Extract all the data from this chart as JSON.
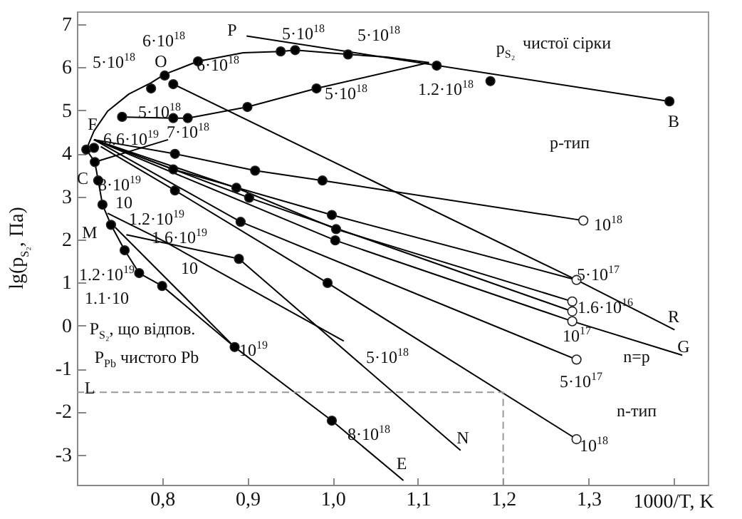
{
  "chart_data": {
    "type": "line",
    "xlabel": "1000/T, K",
    "ylabel": "lg(p$_{S₂}$, Па)",
    "xlim": [
      0.7,
      1.44
    ],
    "ylim": [
      -3.7,
      7.3
    ],
    "xticks": [
      {
        "value": 0.8,
        "label": "0,8"
      },
      {
        "value": 0.9,
        "label": "0,9"
      },
      {
        "value": 1.0,
        "label": "1,0"
      },
      {
        "value": 1.1,
        "label": "1,1"
      },
      {
        "value": 1.2,
        "label": "1,2"
      },
      {
        "value": 1.3,
        "label": "1,3"
      },
      {
        "value": 1.4,
        "label": null
      }
    ],
    "yticks": [
      -3,
      -2,
      -1,
      0,
      1,
      2,
      3,
      4,
      5,
      6,
      7
    ],
    "series": [
      {
        "color": "#000000",
        "x": [
          1.113,
          1.063,
          1.018,
          0.956,
          0.939,
          0.895,
          0.842,
          0.803,
          0.787,
          0.761,
          0.736,
          0.72,
          0.711,
          0.721,
          0.725,
          0.73,
          0.74,
          0.756,
          0.773,
          0.8,
          0.885,
          0.999,
          1.083
        ],
        "values": [
          6.11,
          6.24,
          6.3,
          6.4,
          6.37,
          6.34,
          6.14,
          5.84,
          5.64,
          5.38,
          4.98,
          4.52,
          4.09,
          3.8,
          3.37,
          2.81,
          2.34,
          1.75,
          1.22,
          0.92,
          -0.5,
          -2.21,
          -3.6
        ]
      },
      {
        "color": "#000000",
        "x": [
          0.748,
          0.813,
          0.83,
          0.9,
          0.981,
          1.113
        ],
        "values": [
          4.85,
          4.82,
          4.82,
          5.08,
          5.51,
          6.11
        ]
      },
      {
        "color": "#000000",
        "x": [
          0.899,
          1.395
        ],
        "values": [
          6.73,
          5.21
        ]
      },
      {
        "color": "#000000",
        "x": [
          0.72,
          0.815,
          0.909,
          0.988,
          1.294
        ],
        "values": [
          4.32,
          3.99,
          3.6,
          3.37,
          2.44
        ]
      },
      {
        "color": "#000000",
        "x": [
          0.721,
          0.807
        ],
        "values": [
          3.8,
          4.32
        ]
      },
      {
        "color": "#000000",
        "x": [
          0.813,
          1.046,
          1.286,
          1.401
        ],
        "values": [
          5.61,
          3.37,
          1.06,
          -0.1
        ]
      },
      {
        "color": "#000000",
        "x": [
          0.72,
          0.813,
          0.999,
          1.286
        ],
        "values": [
          4.32,
          3.63,
          2.57,
          1.06
        ]
      },
      {
        "color": "#000000",
        "x": [
          0.72,
          0.887,
          1.004,
          1.281
        ],
        "values": [
          4.32,
          3.2,
          2.24,
          0.56
        ]
      },
      {
        "color": "#000000",
        "x": [
          0.72,
          0.902,
          1.281
        ],
        "values": [
          4.32,
          2.97,
          0.33
        ]
      },
      {
        "color": "#000000",
        "x": [
          0.72,
          1.003,
          1.281,
          1.41
        ],
        "values": [
          4.32,
          1.98,
          0.1,
          -0.69
        ]
      },
      {
        "color": "#000000",
        "x": [
          0.72,
          0.892,
          1.286
        ],
        "values": [
          4.32,
          2.41,
          -0.79
        ]
      },
      {
        "color": "#000000",
        "x": [
          0.728,
          0.815,
          0.994,
          1.286
        ],
        "values": [
          4.16,
          3.14,
          0.99,
          -2.64
        ]
      },
      {
        "color": "#000000",
        "x": [
          0.736,
          0.803,
          1.013
        ],
        "values": [
          2.61,
          1.95,
          -0.36
        ]
      },
      {
        "color": "#000000",
        "x": [
          0.758,
          0.89,
          1.15
        ],
        "values": [
          2.11,
          1.55,
          -2.9
        ]
      },
      {
        "color": "#000000",
        "x": [
          0.745,
          0.885
        ],
        "values": [
          2.28,
          -0.5
        ]
      },
      {
        "color": "#999999",
        "line_style": "dashed",
        "x": [
          0.7,
          1.2,
          1.2
        ],
        "values": [
          -1.55,
          -1.55,
          -3.7
        ]
      },
      {
        "type": "scatter",
        "marker": "circle",
        "color": "#000000",
        "x": [
          0.787,
          0.803,
          0.813,
          0.842,
          0.939,
          0.956,
          1.018,
          1.122,
          1.185,
          1.395,
          0.753,
          0.813,
          0.83,
          0.9,
          0.981,
          0.711,
          0.72,
          0.721,
          0.725,
          0.73,
          0.74,
          0.815,
          0.813,
          0.815,
          0.909,
          0.988,
          0.887,
          0.902,
          0.892,
          0.999,
          1.004,
          1.003,
          0.756,
          0.773,
          0.8,
          0.89,
          0.994,
          0.885,
          0.999
        ],
        "values": [
          5.51,
          5.81,
          5.61,
          6.14,
          6.37,
          6.4,
          6.3,
          6.04,
          5.68,
          5.21,
          4.85,
          4.82,
          4.82,
          5.08,
          5.51,
          4.09,
          4.13,
          3.8,
          3.37,
          2.81,
          2.34,
          3.99,
          3.63,
          3.14,
          3.6,
          3.37,
          3.2,
          2.97,
          2.41,
          2.57,
          2.24,
          1.98,
          1.75,
          1.22,
          0.92,
          1.55,
          0.99,
          -0.5,
          -2.21
        ]
      },
      {
        "type": "scatter",
        "marker": "circle",
        "color": "#ffffff",
        "x": [
          1.294,
          1.286,
          1.281,
          1.281,
          1.281,
          1.286,
          1.286
        ],
        "values": [
          2.44,
          1.06,
          0.56,
          0.33,
          0.1,
          -0.79,
          -2.64
        ]
      }
    ],
    "annotations": [
      "P",
      "5·10$^{18}$",
      "5·10$^{18}$",
      "6·10$^{18}$",
      "5·10$^{18}$",
      "O",
      "6·10$^{18}$",
      "5·10$^{18}$",
      "5·10$^{18}$",
      "F",
      "6.6·10$^{19}$",
      "7·10$^{18}$",
      "C",
      "8·10$^{19}$",
      "10",
      "1.2·10$^{19}$",
      "M",
      "1.6·10$^{19}$",
      "1.2·10$^{19}$",
      "1.1·10",
      "10",
      "P$_{S₂}$, що  відпов.",
      "P$_{Pb}$ чистого Pb",
      "10$^{19}$",
      "L",
      "8·10$^{18}$",
      "5·10$^{18}$",
      "5·10$^{17}$",
      "1.6·10$^{16}$",
      "R",
      "10$^{17}$",
      "G",
      "n=p",
      "5·10$^{17}$",
      "n-тип",
      "N",
      "10$^{18}$",
      "E",
      "p$_{S₂}$",
      "чистої сірки",
      "1.2·10$^{18}$",
      "B",
      "p-тип",
      "10$^{18}$"
    ]
  }
}
